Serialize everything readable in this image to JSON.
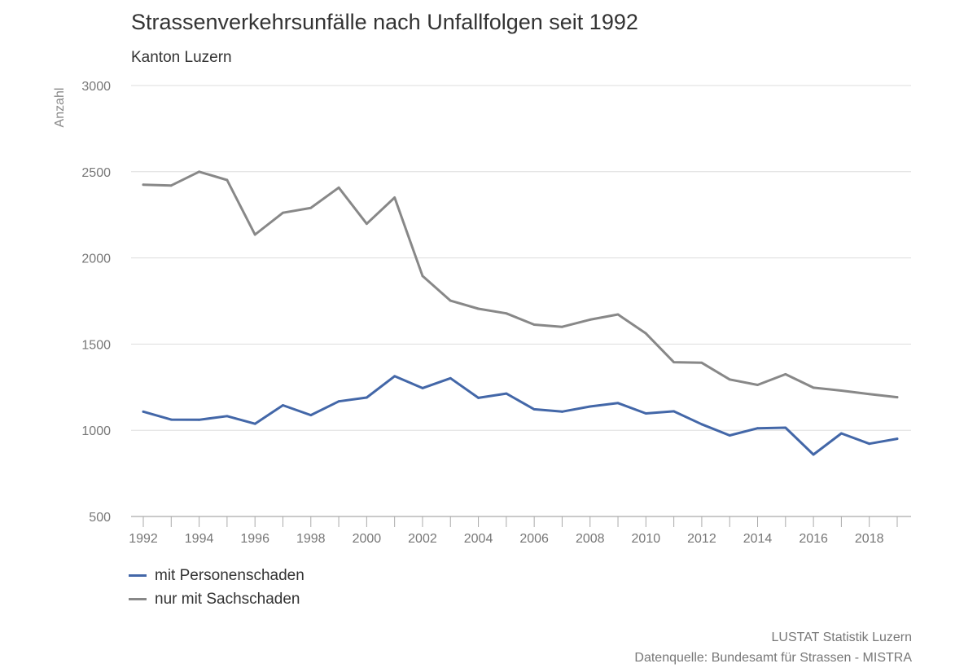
{
  "chart_data": {
    "type": "line",
    "title": "Strassenverkehrsunfälle nach Unfallfolgen seit 1992",
    "subtitle": "Kanton Luzern",
    "ylabel": "Anzahl",
    "xlabel": "",
    "ylim": [
      500,
      3000
    ],
    "yticks": [
      500,
      1000,
      1500,
      2000,
      2500,
      3000
    ],
    "x": [
      1992,
      1993,
      1994,
      1995,
      1996,
      1997,
      1998,
      1999,
      2000,
      2001,
      2002,
      2003,
      2004,
      2005,
      2006,
      2007,
      2008,
      2009,
      2010,
      2011,
      2012,
      2013,
      2014,
      2015,
      2016,
      2017,
      2018,
      2019
    ],
    "xtick_labels": [
      1992,
      1994,
      1996,
      1998,
      2000,
      2002,
      2004,
      2006,
      2008,
      2010,
      2012,
      2014,
      2016,
      2018
    ],
    "grid": true,
    "legend_position": "bottom-left",
    "series": [
      {
        "name": "mit Personenschaden",
        "color": "#4367a8",
        "values": [
          1108,
          1062,
          1061,
          1082,
          1038,
          1145,
          1088,
          1168,
          1190,
          1314,
          1245,
          1302,
          1188,
          1213,
          1122,
          1108,
          1138,
          1158,
          1098,
          1110,
          1035,
          970,
          1012,
          1015,
          859,
          982,
          922,
          951
        ]
      },
      {
        "name": "nur mit Sachschaden",
        "color": "#888888",
        "values": [
          2425,
          2420,
          2500,
          2452,
          2135,
          2262,
          2290,
          2408,
          2198,
          2350,
          1895,
          1752,
          1705,
          1678,
          1613,
          1600,
          1642,
          1672,
          1562,
          1395,
          1392,
          1295,
          1263,
          1325,
          1247,
          1230,
          1210,
          1192
        ]
      }
    ],
    "source_lines": [
      "LUSTAT Statistik Luzern",
      "Datenquelle: Bundesamt für Strassen - MISTRA"
    ]
  }
}
